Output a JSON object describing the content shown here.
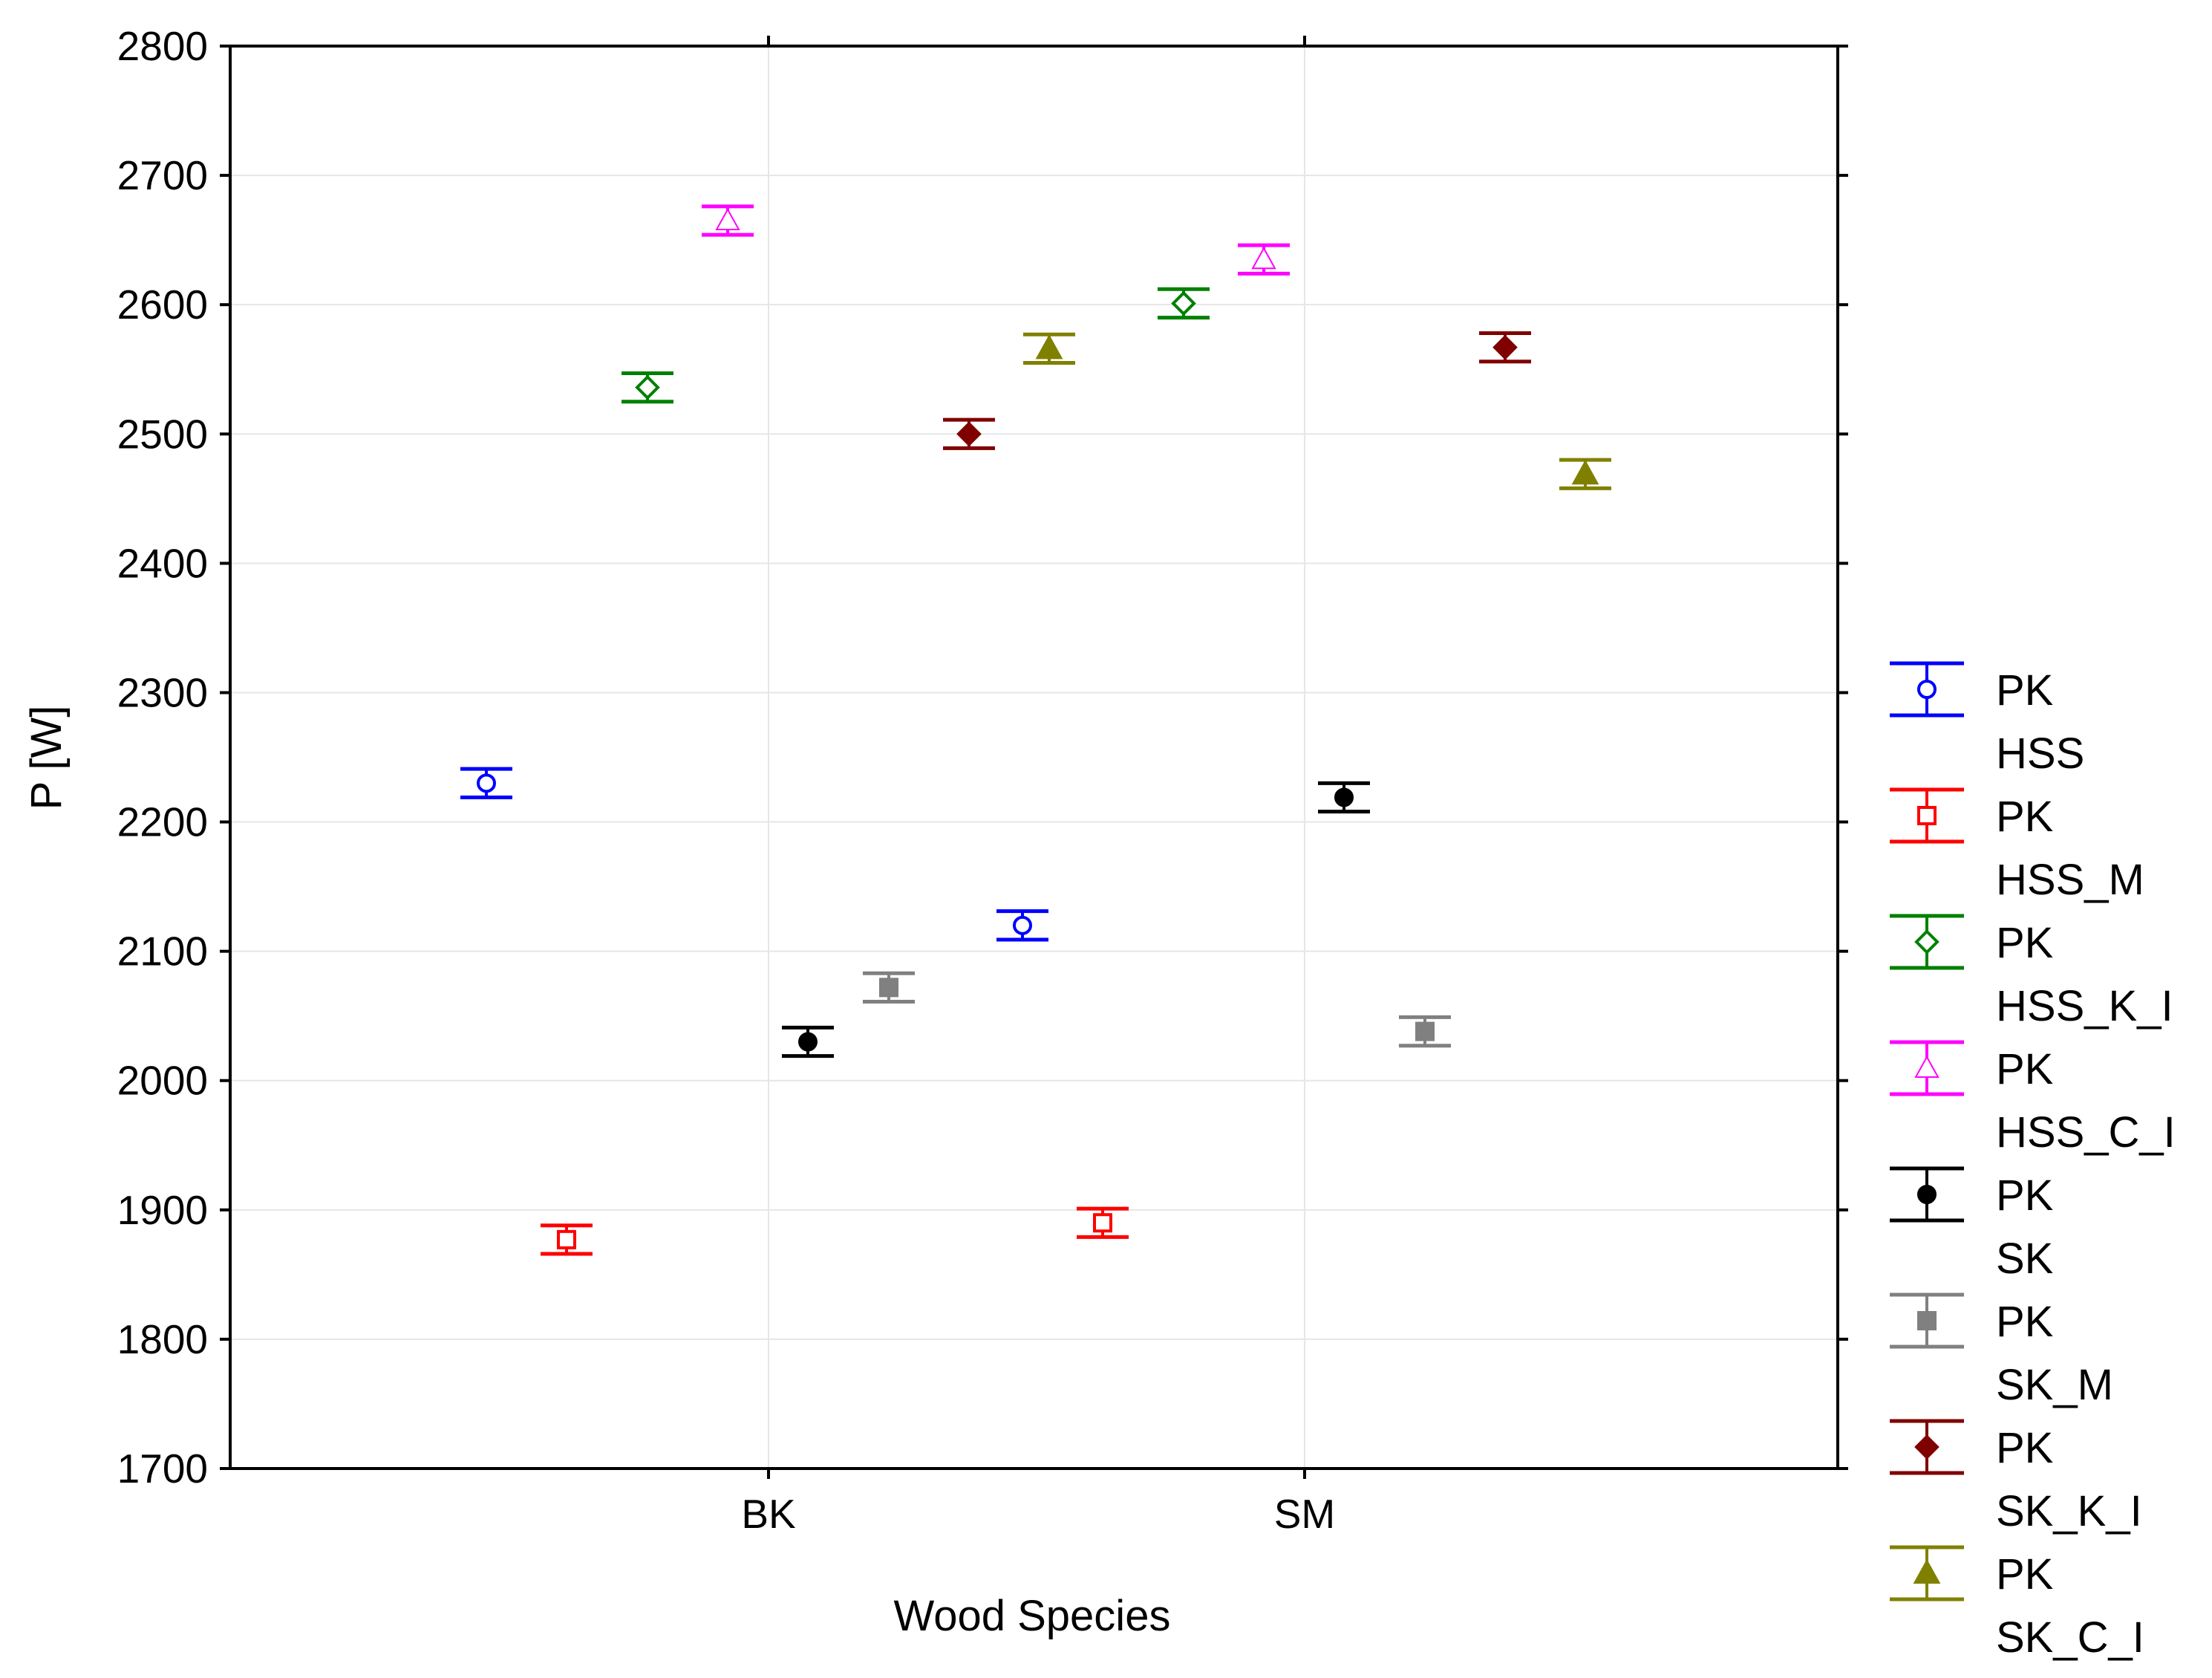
{
  "chart_data": {
    "type": "scatter",
    "subtype": "point-with-error-bars",
    "title": "",
    "xlabel": "Wood Species",
    "ylabel": "P [W]",
    "categories": [
      "BK",
      "SM"
    ],
    "ylim": [
      1700,
      2800
    ],
    "yticks": [
      1700,
      1800,
      1900,
      2000,
      2100,
      2200,
      2300,
      2400,
      2500,
      2600,
      2700,
      2800
    ],
    "grid": true,
    "legend_position": "right",
    "series": [
      {
        "name": "PK HSS",
        "line1": "PK",
        "line2": "HSS",
        "color": "#0000ff",
        "marker": "open-circle",
        "values": [
          2230,
          2120
        ],
        "errors": [
          11,
          11
        ]
      },
      {
        "name": "PK HSS_M",
        "line1": "PK",
        "line2": "HSS_M",
        "color": "#ff0000",
        "marker": "open-square",
        "values": [
          1877,
          1890
        ],
        "errors": [
          11,
          11
        ]
      },
      {
        "name": "PK HSS_K_I",
        "line1": "PK",
        "line2": "HSS_K_I",
        "color": "#008000",
        "marker": "open-diamond",
        "values": [
          2536,
          2601
        ],
        "errors": [
          11,
          11
        ]
      },
      {
        "name": "PK HSS_C_I",
        "line1": "PK",
        "line2": "HSS_C_I",
        "color": "#ff00ff",
        "marker": "open-triangle",
        "values": [
          2665,
          2635
        ],
        "errors": [
          11,
          11
        ]
      },
      {
        "name": "PK SK",
        "line1": "PK",
        "line2": "SK",
        "color": "#000000",
        "marker": "filled-circle",
        "values": [
          2030,
          2219
        ],
        "errors": [
          11,
          11
        ]
      },
      {
        "name": "PK SK_M",
        "line1": "PK",
        "line2": "SK_M",
        "color": "#808080",
        "marker": "filled-square",
        "values": [
          2072,
          2038
        ],
        "errors": [
          11,
          11
        ]
      },
      {
        "name": "PK SK_K_I",
        "line1": "PK",
        "line2": "SK_K_I",
        "color": "#800000",
        "marker": "filled-diamond",
        "values": [
          2500,
          2567
        ],
        "errors": [
          11,
          11
        ]
      },
      {
        "name": "PK SK_C_I",
        "line1": "PK",
        "line2": "SK_C_I",
        "color": "#808000",
        "marker": "filled-triangle",
        "values": [
          2566,
          2469
        ],
        "errors": [
          11,
          11
        ]
      }
    ]
  }
}
